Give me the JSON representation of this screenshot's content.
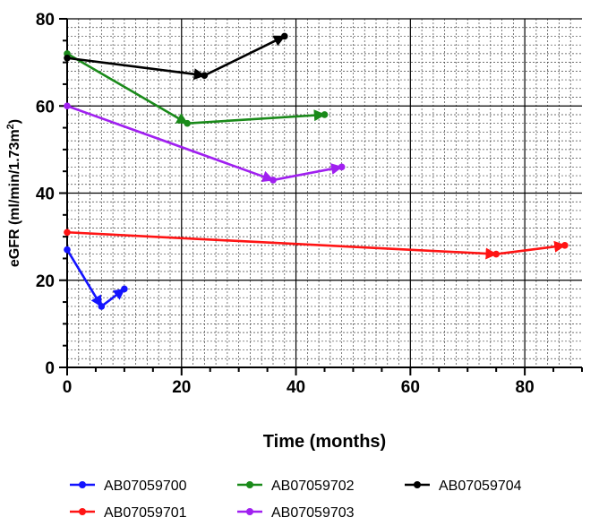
{
  "chart_data": {
    "type": "line",
    "xlabel": "Time (months)",
    "ylabel": "eGFR (ml/min/1.73m",
    "ylabel_sup": "2",
    "ylabel_close": ")",
    "xlim": [
      0,
      90
    ],
    "ylim": [
      0,
      80
    ],
    "x_ticks": [
      0,
      20,
      40,
      60,
      80
    ],
    "y_ticks": [
      0,
      20,
      40,
      60,
      80
    ],
    "grid": "major and minor",
    "legend_position": "bottom",
    "series": [
      {
        "name": "AB07059700",
        "color": "#1414ff",
        "x": [
          0,
          6,
          10
        ],
        "y": [
          27,
          14,
          18
        ]
      },
      {
        "name": "AB07059701",
        "color": "#ff1414",
        "x": [
          0,
          75,
          87
        ],
        "y": [
          31,
          26,
          28
        ]
      },
      {
        "name": "AB07059702",
        "color": "#1a8a1a",
        "x": [
          0,
          21,
          45
        ],
        "y": [
          72,
          56,
          58
        ]
      },
      {
        "name": "AB07059703",
        "color": "#a020f0",
        "x": [
          0,
          36,
          48
        ],
        "y": [
          60,
          43,
          46
        ]
      },
      {
        "name": "AB07059704",
        "color": "#000000",
        "x": [
          0,
          24,
          38
        ],
        "y": [
          71,
          67,
          76
        ]
      }
    ]
  }
}
